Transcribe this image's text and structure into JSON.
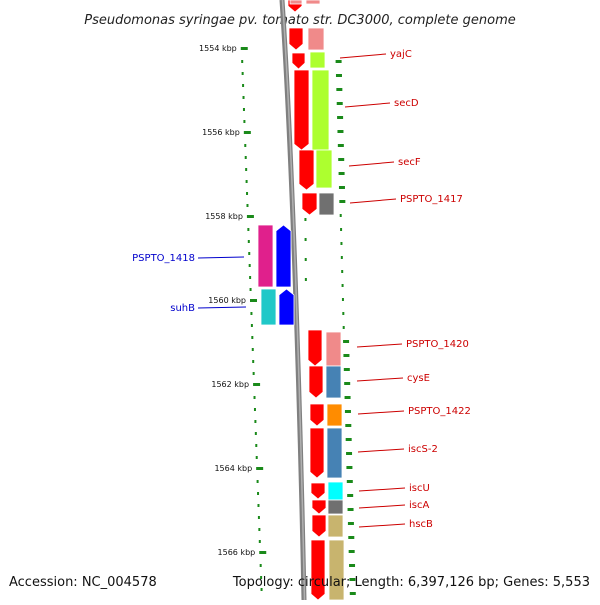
{
  "header": {
    "title": "Pseudomonas syringae pv. tomato str. DC3000, complete genome"
  },
  "footer": {
    "accession": "Accession: NC_004578",
    "topology": "Topology: circular; Length: 6,397,126 bp; Genes: 5,553"
  },
  "scale": {
    "ticks": [
      "1554 kbp",
      "1556 kbp",
      "1558 kbp",
      "1560 kbp",
      "1562 kbp",
      "1564 kbp",
      "1566 kbp"
    ],
    "tick_color": "#1a8a1a"
  },
  "genes": [
    {
      "label": "yajC",
      "strand": "forward",
      "color": "#f08a8a",
      "label_color": "#cc0000"
    },
    {
      "label": "secD",
      "strand": "forward",
      "color": "#adff2f",
      "label_color": "#cc0000"
    },
    {
      "label": "secF",
      "strand": "forward",
      "color": "#adff2f",
      "label_color": "#cc0000"
    },
    {
      "label": "PSPTO_1417",
      "strand": "forward",
      "color": "#707070",
      "label_color": "#cc0000"
    },
    {
      "label": "PSPTO_1418",
      "strand": "reverse",
      "color": "#e0208c",
      "label_color": "#0000cc"
    },
    {
      "label": "suhB",
      "strand": "reverse",
      "color": "#20c8c8",
      "label_color": "#0000cc"
    },
    {
      "label": "PSPTO_1420",
      "strand": "forward",
      "color": "#f08a8a",
      "label_color": "#cc0000"
    },
    {
      "label": "cysE",
      "strand": "forward",
      "color": "#4682b4",
      "label_color": "#cc0000"
    },
    {
      "label": "PSPTO_1422",
      "strand": "forward",
      "color": "#ff8c00",
      "label_color": "#cc0000"
    },
    {
      "label": "iscS-2",
      "strand": "forward",
      "color": "#4682b4",
      "label_color": "#cc0000"
    },
    {
      "label": "iscU",
      "strand": "forward",
      "color": "#00ffff",
      "label_color": "#cc0000"
    },
    {
      "label": "iscA",
      "strand": "forward",
      "color": "#707070",
      "label_color": "#cc0000"
    },
    {
      "label": "hscB",
      "strand": "forward",
      "color": "#c8b46e",
      "label_color": "#cc0000"
    }
  ],
  "colors": {
    "backbone": "#808080",
    "forward_strand": "#ff0000",
    "reverse_strand": "#0000ff",
    "forward_label": "#cc0000",
    "reverse_label": "#0000cc"
  }
}
